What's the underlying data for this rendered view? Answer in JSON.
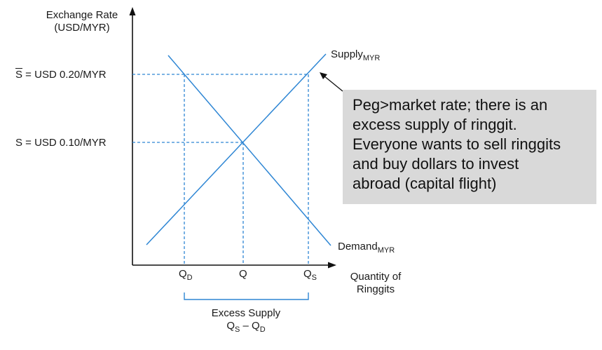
{
  "axes": {
    "y_title_line1": "Exchange Rate",
    "y_title_line2": "(USD/MYR)",
    "x_title_line1": "Quantity of",
    "x_title_line2": "Ringgits"
  },
  "price_levels": {
    "peg": {
      "symbol": "S",
      "text": " = USD 0.20/MYR"
    },
    "market": {
      "text": "S = USD 0.10/MYR"
    }
  },
  "curves": {
    "supply": {
      "name": "Supply",
      "subscript": "MYR"
    },
    "demand": {
      "name": "Demand",
      "subscript": "MYR"
    }
  },
  "quantities": {
    "qd": {
      "base": "Q",
      "sub": "D"
    },
    "q": {
      "base": "Q"
    },
    "qs": {
      "base": "Q",
      "sub": "S"
    }
  },
  "bracket": {
    "title": "Excess Supply",
    "expr_q1": "Q",
    "expr_s": "S",
    "expr_minus": " – ",
    "expr_q2": "Q",
    "expr_d": "D"
  },
  "callout": {
    "lines": [
      "Peg>market rate; there is an",
      "excess supply of ringgit.",
      "Everyone wants to sell ringgits",
      "and buy dollars to invest",
      "abroad (capital flight)"
    ]
  },
  "colors": {
    "curve": "#2e86d4",
    "guide": "#2e86d4",
    "axis": "#111111",
    "callout_bg": "#d9d9d9"
  }
}
